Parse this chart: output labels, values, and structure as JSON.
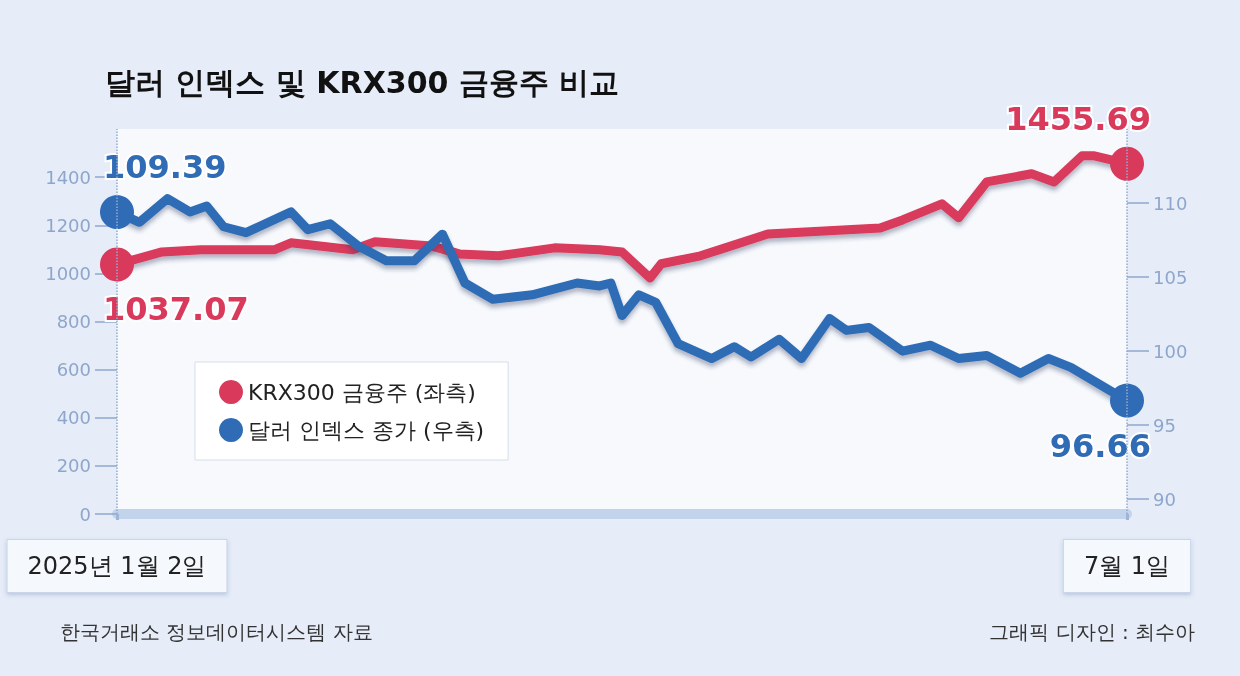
{
  "chart_data": {
    "type": "line",
    "title": "달러 인덱스 및 KRX300 금융주 비교",
    "xlim": [
      "2025-01-02",
      "2025-07-01"
    ],
    "xticks": [
      {
        "value": "2025-01-02",
        "label": "2025년 1월 2일"
      },
      {
        "value": "2025-07-01",
        "label": "7월 1일"
      }
    ],
    "ylim": [
      0,
      1600
    ],
    "yticks": [
      0,
      200,
      400,
      600,
      800,
      1000,
      1200,
      1400
    ],
    "y2lim": [
      89,
      115
    ],
    "y2ticks": [
      90,
      95,
      100,
      105,
      110
    ],
    "grid": false,
    "legend": "bottom left",
    "line_style": "solid",
    "series": [
      {
        "name": "KRX300 금융주 (좌측)",
        "color": "#d93a5c",
        "x": [
          "2025-01-02",
          "2025-01-10",
          "2025-01-17",
          "2025-01-30",
          "2025-02-02",
          "2025-02-13",
          "2025-02-17",
          "2025-02-27",
          "2025-03-04",
          "2025-03-11",
          "2025-03-21",
          "2025-03-29",
          "2025-04-02",
          "2025-04-07",
          "2025-04-09",
          "2025-04-16",
          "2025-04-28",
          "2025-05-18",
          "2025-05-22",
          "2025-05-29",
          "2025-06-01",
          "2025-06-06",
          "2025-06-14",
          "2025-06-18",
          "2025-06-23",
          "2025-06-25",
          "2025-07-01"
        ],
        "values": [
          1037.07,
          1089,
          1098,
          1098,
          1127,
          1098,
          1131,
          1114,
          1081,
          1073,
          1106,
          1098,
          1089,
          981,
          1040,
          1073,
          1164,
          1189,
          1222,
          1289,
          1231,
          1380,
          1414,
          1380,
          1489,
          1489,
          1455.69
        ],
        "value_labels": [
          "1037.07",
          null,
          null,
          null,
          null,
          null,
          null,
          null,
          null,
          null,
          null,
          null,
          null,
          null,
          null,
          null,
          null,
          null,
          null,
          null,
          null,
          null,
          null,
          null,
          null,
          null,
          "1455.69"
        ]
      },
      {
        "name": "달러 인덱스 종가 (우측)",
        "color": "#2f6cb5",
        "axis": "y2",
        "x": [
          "2025-01-02",
          "2025-01-06",
          "2025-01-11",
          "2025-01-15",
          "2025-01-18",
          "2025-01-21",
          "2025-01-25",
          "2025-02-02",
          "2025-02-05",
          "2025-02-09",
          "2025-02-14",
          "2025-02-19",
          "2025-02-24",
          "2025-03-01",
          "2025-03-05",
          "2025-03-10",
          "2025-03-17",
          "2025-03-25",
          "2025-03-29",
          "2025-03-31",
          "2025-04-02",
          "2025-04-05",
          "2025-04-08",
          "2025-04-12",
          "2025-04-18",
          "2025-04-22",
          "2025-04-25",
          "2025-04-30",
          "2025-05-04",
          "2025-05-09",
          "2025-05-12",
          "2025-05-16",
          "2025-05-22",
          "2025-05-27",
          "2025-06-01",
          "2025-06-06",
          "2025-06-12",
          "2025-06-17",
          "2025-06-21",
          "2025-07-01"
        ],
        "values": [
          109.39,
          108.7,
          110.3,
          109.4,
          109.8,
          108.4,
          108.0,
          109.4,
          108.2,
          108.6,
          107.1,
          106.1,
          106.1,
          107.9,
          104.6,
          103.5,
          103.8,
          104.6,
          104.4,
          104.6,
          102.4,
          103.8,
          103.3,
          100.5,
          99.5,
          100.3,
          99.6,
          100.8,
          99.5,
          102.2,
          101.4,
          101.6,
          100.0,
          100.4,
          99.5,
          99.7,
          98.5,
          99.5,
          98.9,
          96.66
        ],
        "value_labels": [
          "109.39",
          null,
          null,
          null,
          null,
          null,
          null,
          null,
          null,
          null,
          null,
          null,
          null,
          null,
          null,
          null,
          null,
          null,
          null,
          null,
          null,
          null,
          null,
          null,
          null,
          null,
          null,
          null,
          null,
          null,
          null,
          null,
          null,
          null,
          null,
          null,
          null,
          null,
          null,
          "96.66"
        ]
      }
    ],
    "ref_lines": [
      {
        "axis": "x",
        "value": "2025-01-02",
        "line_style": "dotted",
        "color": "#93aad0"
      },
      {
        "axis": "x",
        "value": "2025-07-01",
        "line_style": "dotted",
        "color": "#93aad0"
      }
    ],
    "annotations": [
      "한국거래소 정보데이터시스템 자료",
      "그래픽 디자인 : 최수아"
    ]
  }
}
